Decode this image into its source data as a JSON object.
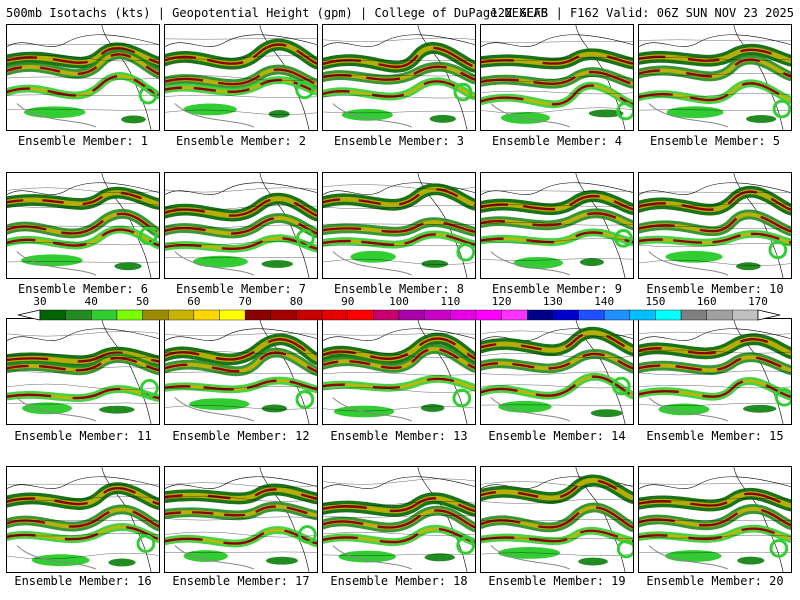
{
  "header": {
    "left": "500mb Isotachs (kts) | Geopotential Height (gpm) | College of DuPage NEXLAB",
    "right": "12Z GEFS | F162 Valid: 06Z SUN NOV 23 2025"
  },
  "members": [
    "Ensemble Member: 1",
    "Ensemble Member: 2",
    "Ensemble Member: 3",
    "Ensemble Member: 4",
    "Ensemble Member: 5",
    "Ensemble Member: 6",
    "Ensemble Member: 7",
    "Ensemble Member: 8",
    "Ensemble Member: 9",
    "Ensemble Member: 10",
    "Ensemble Member: 11",
    "Ensemble Member: 12",
    "Ensemble Member: 13",
    "Ensemble Member: 14",
    "Ensemble Member: 15",
    "Ensemble Member: 16",
    "Ensemble Member: 17",
    "Ensemble Member: 18",
    "Ensemble Member: 19",
    "Ensemble Member: 20"
  ],
  "colorbar": {
    "ticks": [
      "30",
      "40",
      "50",
      "60",
      "70",
      "80",
      "90",
      "100",
      "110",
      "120",
      "130",
      "140",
      "150",
      "160",
      "170"
    ],
    "colors": [
      "#006400",
      "#228b22",
      "#32cd32",
      "#7cfc00",
      "#9b8b00",
      "#c8b400",
      "#ffd700",
      "#ffff00",
      "#8b0000",
      "#a50000",
      "#c80000",
      "#e60000",
      "#ff0000",
      "#c8006e",
      "#aa00aa",
      "#c800c8",
      "#e600e6",
      "#ff00ff",
      "#ff33ff",
      "#00008b",
      "#0000cd",
      "#1e50ff",
      "#1e90ff",
      "#00bfff",
      "#00ffff",
      "#808080",
      "#a0a0a0",
      "#c0c0c0"
    ]
  }
}
